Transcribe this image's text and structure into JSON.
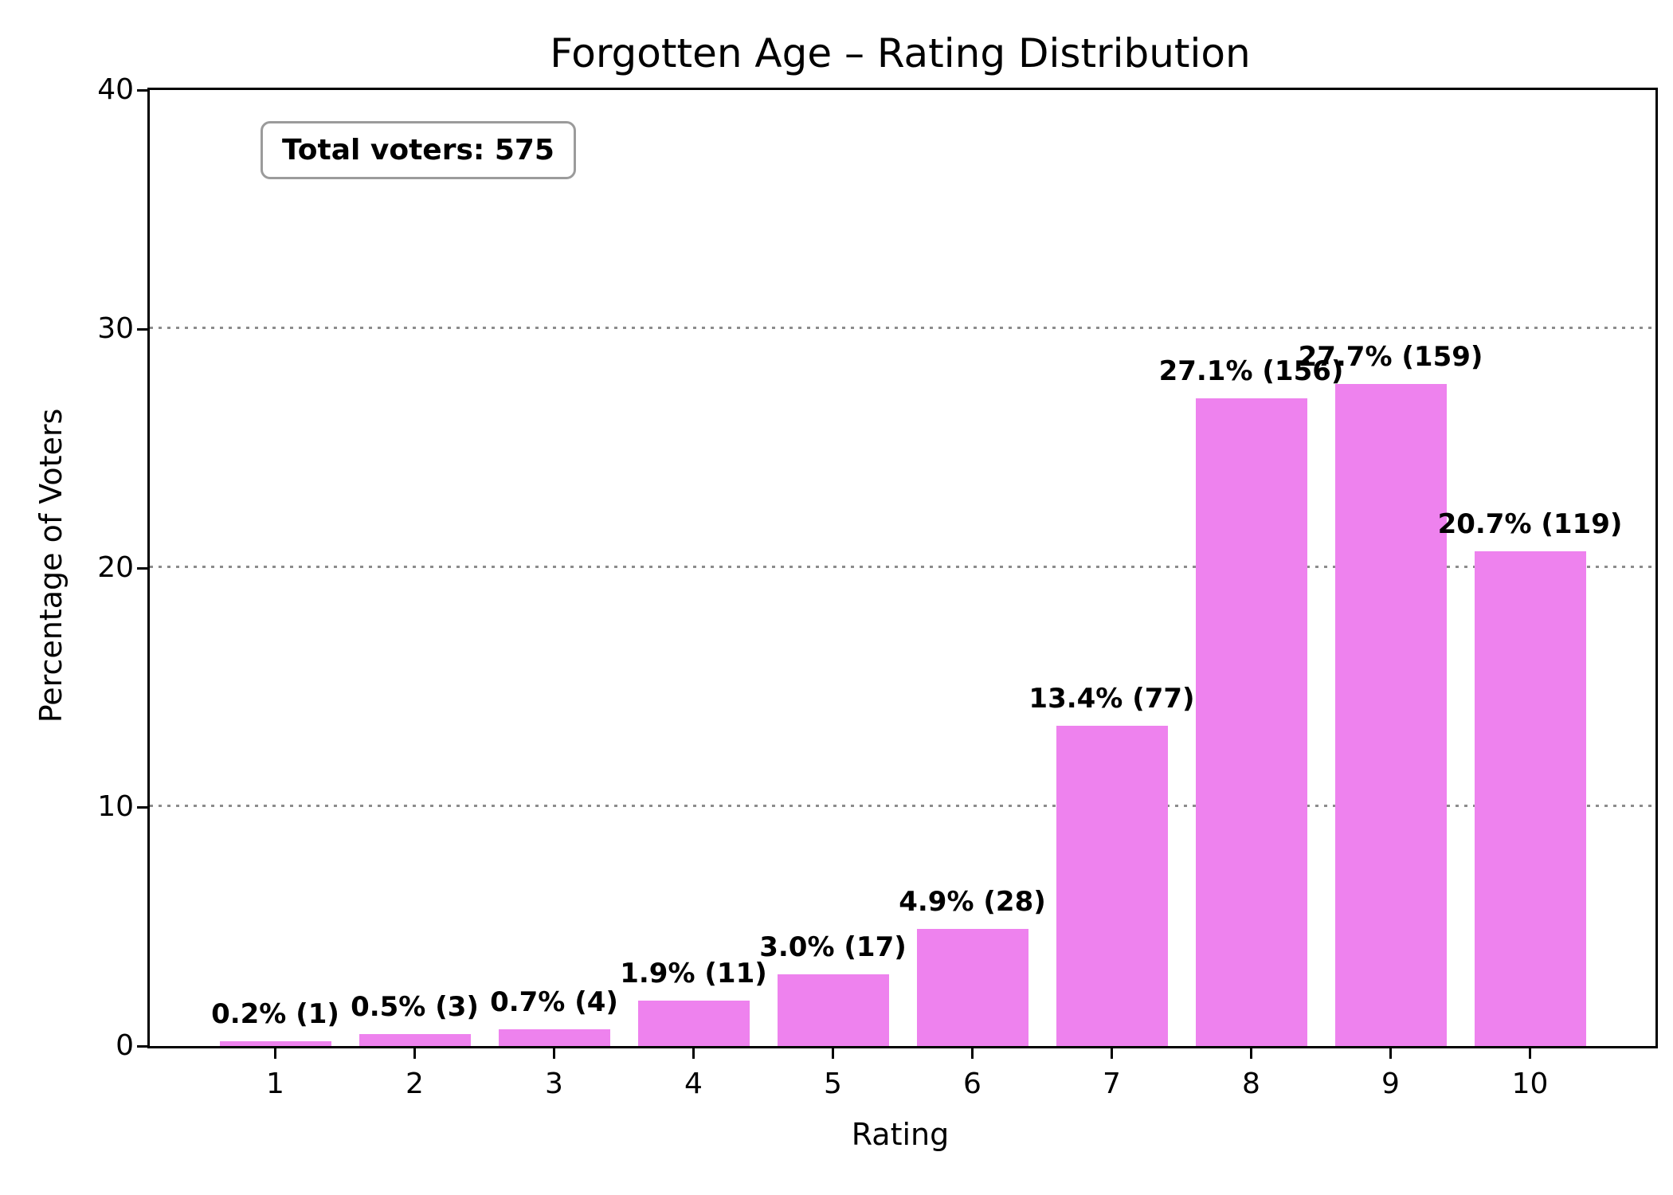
{
  "title": "Forgotten Age – Rating Distribution",
  "total_voters_label": "Total voters: 575",
  "chart_data": {
    "type": "bar",
    "title": "Forgotten Age – Rating Distribution",
    "xlabel": "Rating",
    "ylabel": "Percentage of Voters",
    "categories": [
      "1",
      "2",
      "3",
      "4",
      "5",
      "6",
      "7",
      "8",
      "9",
      "10"
    ],
    "values": [
      0.2,
      0.5,
      0.7,
      1.9,
      3.0,
      4.9,
      13.4,
      27.1,
      27.7,
      20.7
    ],
    "counts": [
      1,
      3,
      4,
      11,
      17,
      28,
      77,
      156,
      159,
      119
    ],
    "bar_labels": [
      "0.2% (1)",
      "0.5% (3)",
      "0.7% (4)",
      "1.9% (11)",
      "3.0% (17)",
      "4.9% (28)",
      "13.4% (77)",
      "27.1% (156)",
      "27.7% (159)",
      "20.7% (119)"
    ],
    "total_voters": 575,
    "ylim": [
      0,
      40
    ],
    "xlim": [
      0.1,
      10.9
    ],
    "yticks": [
      0,
      10,
      20,
      30,
      40
    ],
    "grid": "horizontal dotted gridlines at 10, 20, 30",
    "legend": "none",
    "colors": {
      "bar": "#EE82EE",
      "grid": "#8c8c8c",
      "text": "#000000",
      "spine": "#000000"
    }
  }
}
